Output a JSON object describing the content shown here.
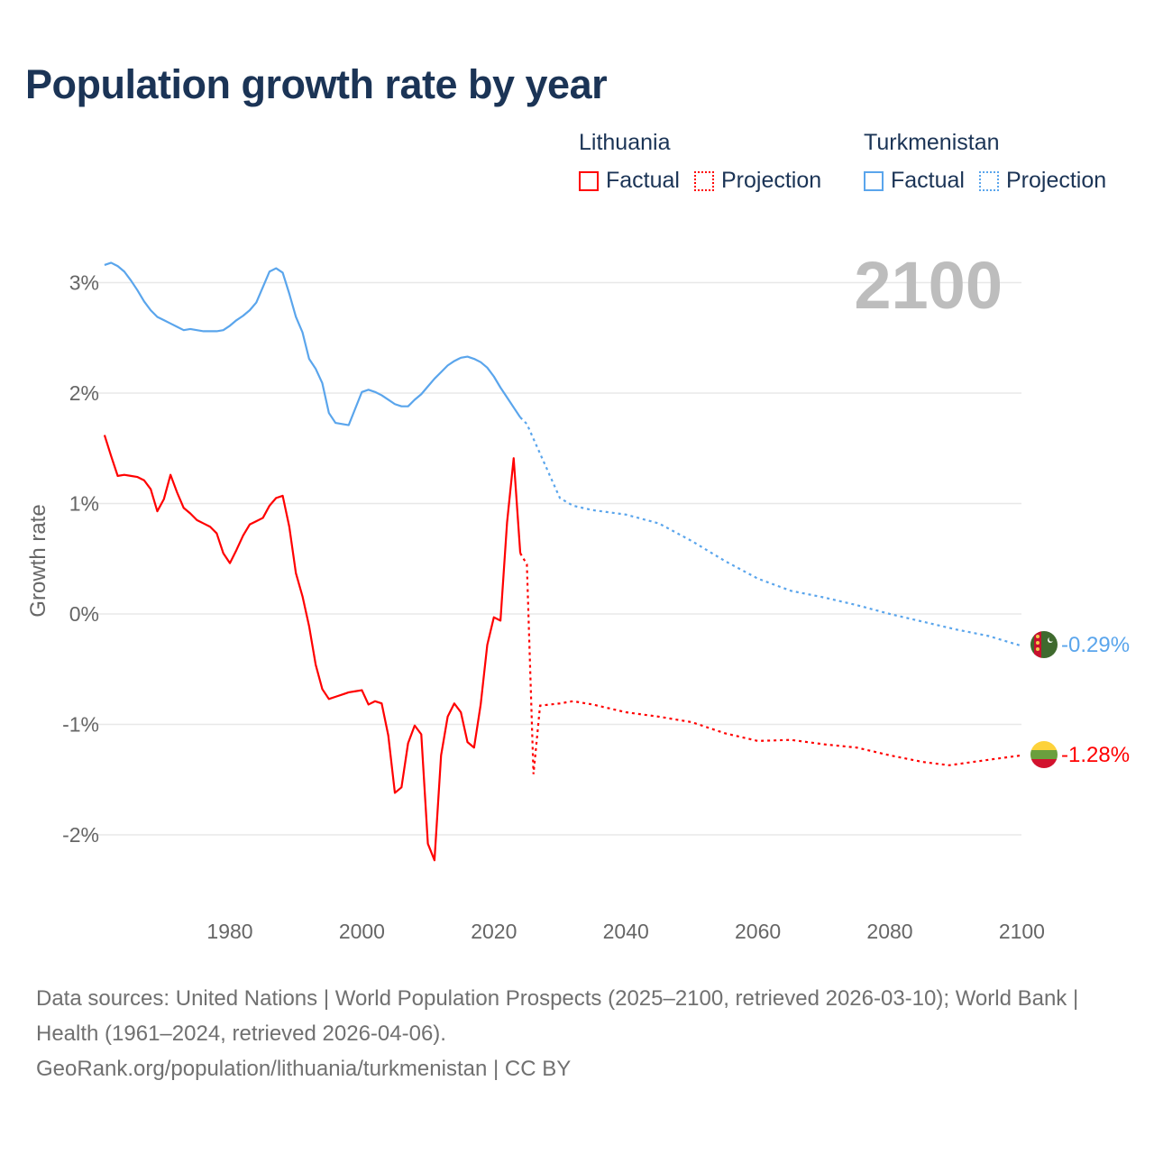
{
  "chart_data": {
    "type": "line",
    "title": "Population growth rate by year",
    "ylabel": "Growth rate",
    "xlabel": "",
    "xlim": [
      1961,
      2100
    ],
    "ylim": [
      -2.6,
      3.3
    ],
    "x_ticks": [
      1980,
      2000,
      2020,
      2040,
      2060,
      2080,
      2100
    ],
    "x_tick_labels": [
      "1980",
      "2000",
      "2020",
      "2040",
      "2060",
      "2080",
      "2100"
    ],
    "y_ticks": [
      3,
      2,
      1,
      0,
      -1,
      -2
    ],
    "y_tick_labels": [
      "3%",
      "2%",
      "1%",
      "0%",
      "-1%",
      "-2%"
    ],
    "grid": true,
    "year_indicator": "2100",
    "series": [
      {
        "country": "Lithuania",
        "color": "#ff0000",
        "factual": {
          "x_start": 1961,
          "values": [
            1.62,
            1.43,
            1.25,
            1.26,
            1.25,
            1.24,
            1.21,
            1.13,
            0.93,
            1.04,
            1.26,
            1.1,
            0.96,
            0.91,
            0.85,
            0.82,
            0.79,
            0.73,
            0.55,
            0.46,
            0.58,
            0.71,
            0.81,
            0.84,
            0.87,
            0.98,
            1.05,
            1.07,
            0.79,
            0.37,
            0.16,
            -0.11,
            -0.46,
            -0.68,
            -0.77,
            -0.75,
            -0.73,
            -0.71,
            -0.7,
            -0.69,
            -0.82,
            -0.79,
            -0.81,
            -1.1,
            -1.62,
            -1.57,
            -1.17,
            -1.01,
            -1.09,
            -2.08,
            -2.23,
            -1.28,
            -0.93,
            -0.81,
            -0.89,
            -1.16,
            -1.21,
            -0.82,
            -0.28,
            -0.03,
            -0.06,
            0.83,
            1.41,
            0.55
          ]
        },
        "projection": {
          "x": [
            2025,
            2026,
            2027,
            2030,
            2032,
            2035,
            2040,
            2045,
            2050,
            2055,
            2060,
            2065,
            2070,
            2075,
            2080,
            2085,
            2089,
            2095,
            2100
          ],
          "values": [
            0.45,
            -1.45,
            -0.83,
            -0.81,
            -0.79,
            -0.82,
            -0.89,
            -0.93,
            -0.98,
            -1.08,
            -1.15,
            -1.14,
            -1.18,
            -1.21,
            -1.28,
            -1.34,
            -1.37,
            -1.32,
            -1.28
          ]
        },
        "end_label": "-1.28%"
      },
      {
        "country": "Turkmenistan",
        "color": "#5aa5ec",
        "factual": {
          "x_start": 1961,
          "values": [
            3.16,
            3.18,
            3.15,
            3.1,
            3.02,
            2.93,
            2.83,
            2.75,
            2.69,
            2.66,
            2.63,
            2.6,
            2.57,
            2.58,
            2.57,
            2.56,
            2.56,
            2.56,
            2.57,
            2.61,
            2.66,
            2.7,
            2.75,
            2.82,
            2.96,
            3.1,
            3.13,
            3.09,
            2.9,
            2.69,
            2.55,
            2.31,
            2.22,
            2.09,
            1.82,
            1.73,
            1.72,
            1.71,
            1.86,
            2.01,
            2.03,
            2.01,
            1.98,
            1.94,
            1.9,
            1.88,
            1.88,
            1.94,
            1.99,
            2.06,
            2.13,
            2.19,
            2.25,
            2.29,
            2.32,
            2.33,
            2.31,
            2.28,
            2.23,
            2.15,
            2.05,
            1.96,
            1.87,
            1.78
          ]
        },
        "projection": {
          "x": [
            2025,
            2030,
            2032,
            2035,
            2040,
            2045,
            2050,
            2055,
            2060,
            2065,
            2070,
            2075,
            2080,
            2085,
            2090,
            2095,
            2100
          ],
          "values": [
            1.72,
            1.05,
            0.98,
            0.94,
            0.9,
            0.82,
            0.66,
            0.48,
            0.32,
            0.21,
            0.15,
            0.08,
            0.0,
            -0.07,
            -0.14,
            -0.2,
            -0.29
          ]
        },
        "end_label": "-0.29%"
      }
    ],
    "legend": {
      "placement": "top-right",
      "groups": [
        {
          "country": "Lithuania",
          "factual": "Factual",
          "projection": "Projection"
        },
        {
          "country": "Turkmenistan",
          "factual": "Factual",
          "projection": "Projection"
        }
      ]
    }
  },
  "footer": {
    "sources": "Data sources: United Nations | World Population Prospects (2025–2100, retrieved 2026-03-10); World Bank | Health (1961–2024, retrieved 2026-04-06).",
    "link": "GeoRank.org/population/lithuania/turkmenistan | CC BY"
  }
}
